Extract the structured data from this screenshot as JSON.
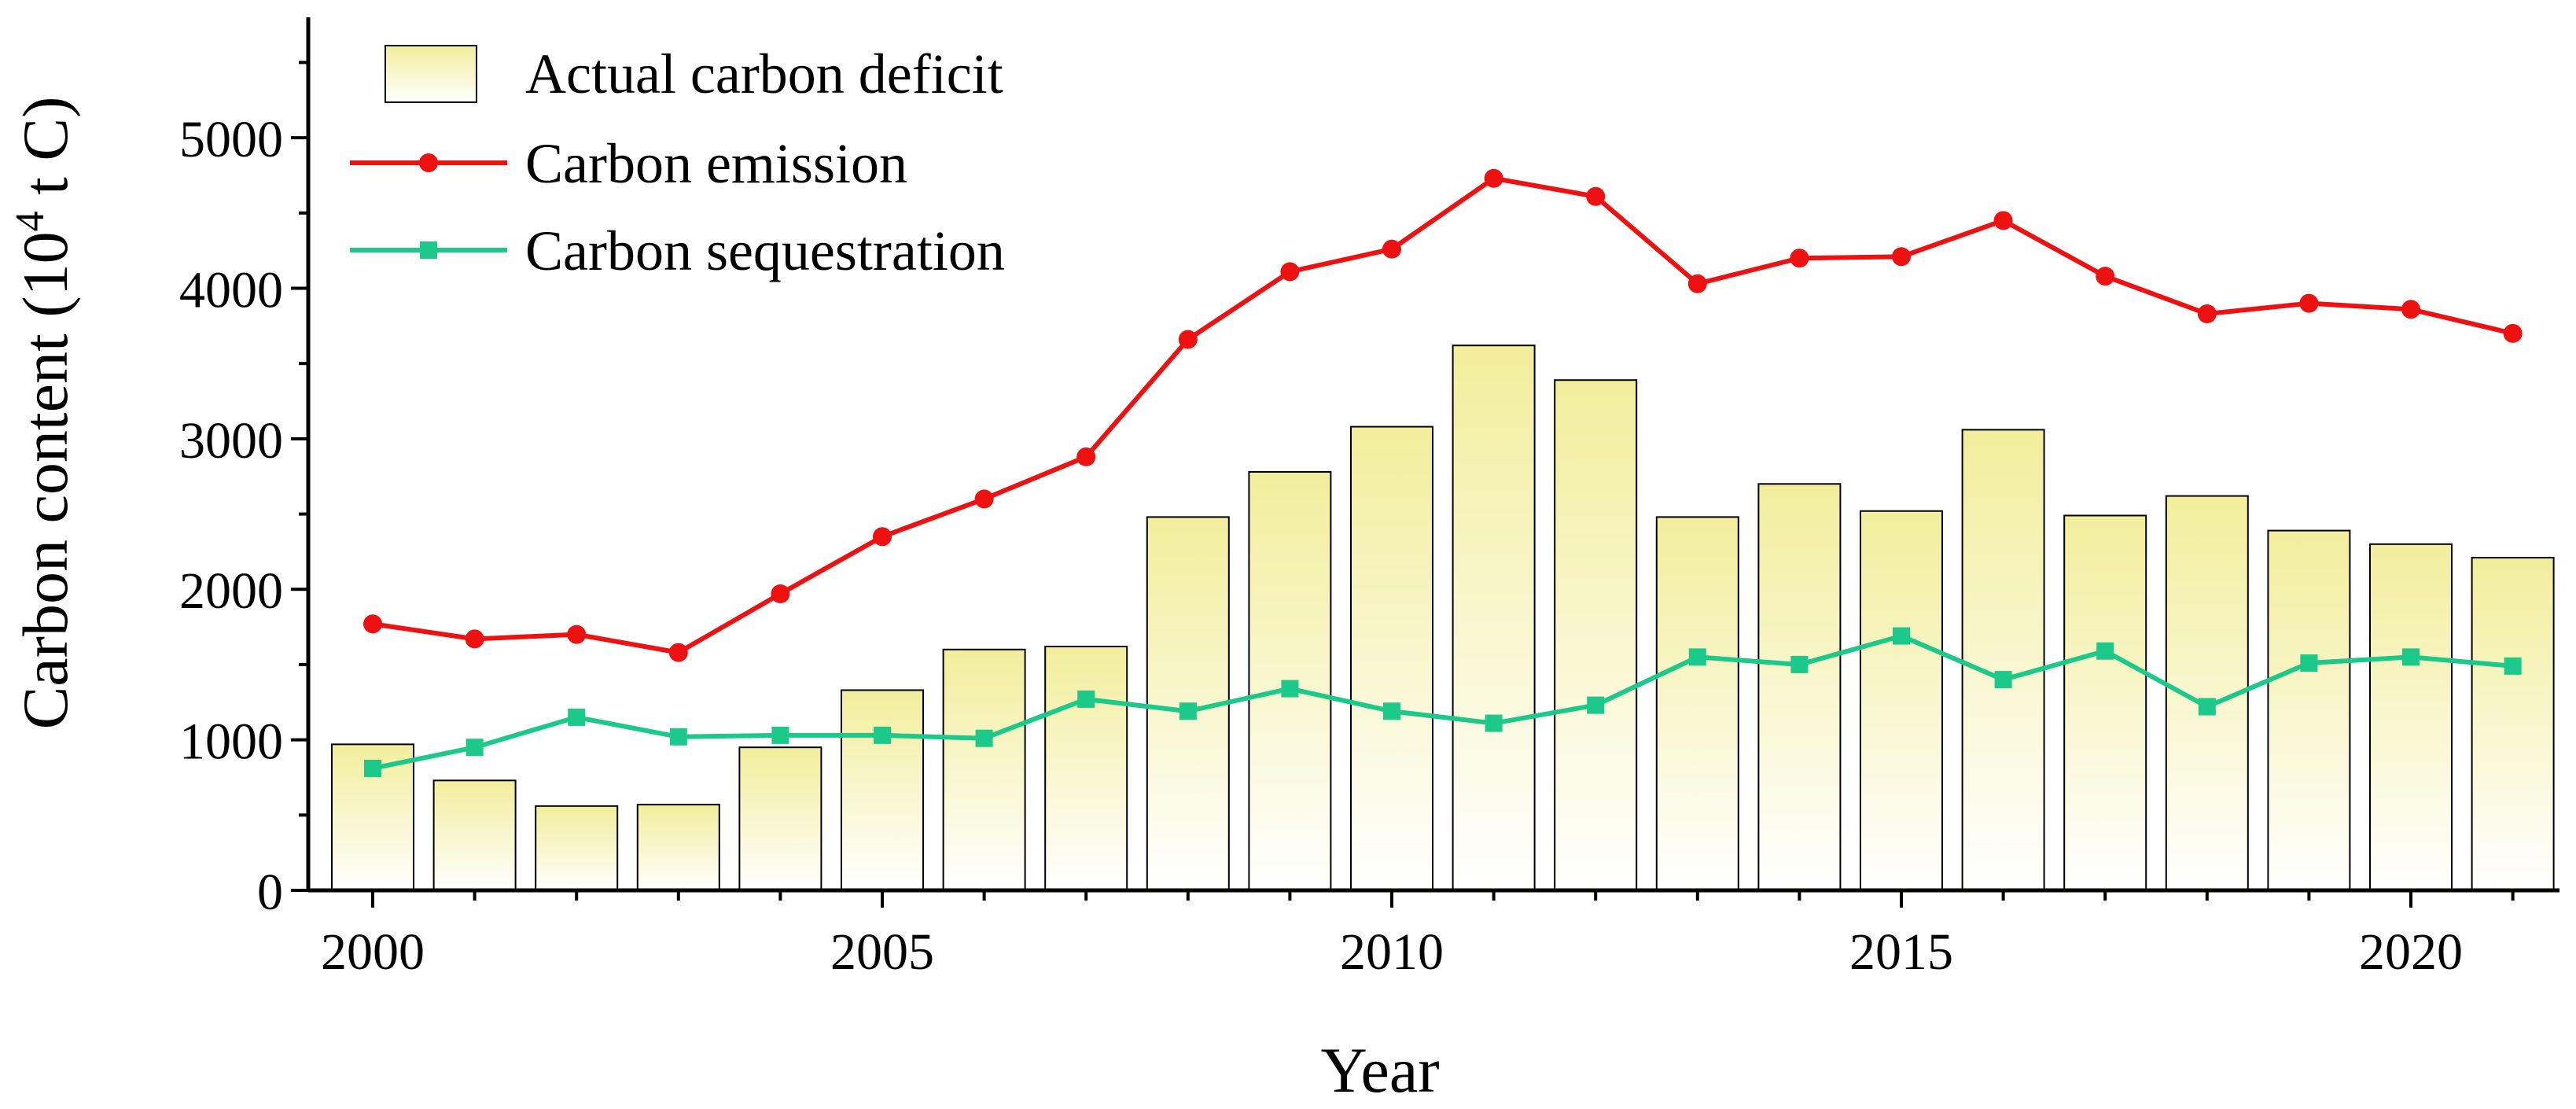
{
  "chart_data": {
    "type": "bar+line",
    "xlabel": "Year",
    "ylabel": {
      "main": "Carbon content (10",
      "sup": "4",
      "tail": " t C)"
    },
    "ylim": [
      0,
      5800
    ],
    "yticks": [
      0,
      1000,
      2000,
      3000,
      4000,
      5000
    ],
    "xticks": [
      2000,
      2005,
      2010,
      2015,
      2020
    ],
    "years": [
      2000,
      2001,
      2002,
      2003,
      2004,
      2005,
      2006,
      2007,
      2008,
      2009,
      2010,
      2011,
      2012,
      2013,
      2014,
      2015,
      2016,
      2017,
      2018,
      2019,
      2020,
      2021
    ],
    "series": [
      {
        "name": "Actual carbon deficit",
        "kind": "bar",
        "color": "#f2ee9c",
        "values": [
          970,
          730,
          560,
          570,
          950,
          1330,
          1600,
          1620,
          2480,
          2780,
          3080,
          3620,
          3390,
          2480,
          2700,
          2520,
          3060,
          2490,
          2620,
          2390,
          2300,
          2210
        ]
      },
      {
        "name": "Carbon emission",
        "kind": "line",
        "marker": "circle",
        "color": "#ee1111",
        "values": [
          1770,
          1670,
          1700,
          1580,
          1970,
          2350,
          2600,
          2880,
          3660,
          4110,
          4260,
          4730,
          4610,
          4030,
          4200,
          4210,
          4450,
          4080,
          3830,
          3900,
          3860,
          3700
        ]
      },
      {
        "name": "Carbon sequestration",
        "kind": "line",
        "marker": "square",
        "color": "#1dc98a",
        "values": [
          810,
          950,
          1150,
          1020,
          1030,
          1030,
          1010,
          1270,
          1190,
          1340,
          1190,
          1110,
          1230,
          1550,
          1500,
          1690,
          1400,
          1590,
          1220,
          1510,
          1550,
          1490
        ]
      }
    ],
    "legend_position": "top-left"
  }
}
